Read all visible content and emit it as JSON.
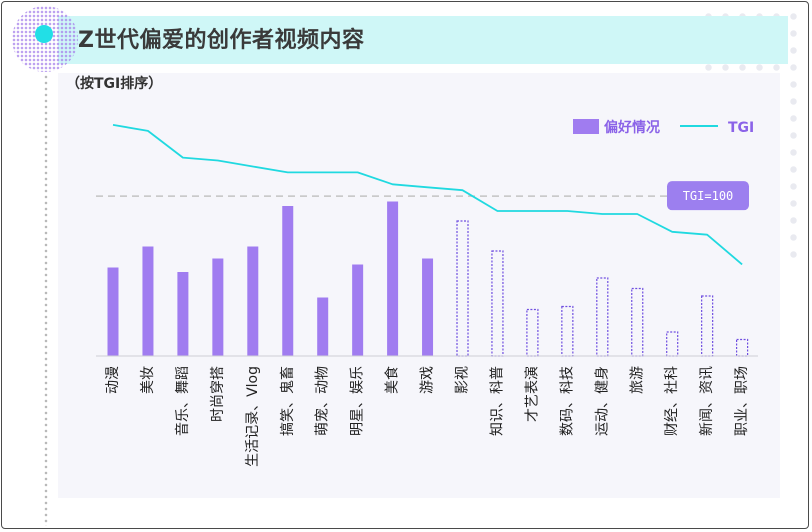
{
  "title": "Z世代偏爱的创作者视频内容",
  "subtitle": "（按TGI排序）",
  "chart_data": {
    "type": "bar",
    "title": "Z世代偏爱的创作者视频内容",
    "subtitle": "（按TGI排序）",
    "categories": [
      "动漫",
      "美妆",
      "音乐、舞蹈",
      "时尚穿搭",
      "生活记录、Vlog",
      "搞笑、鬼畜",
      "萌宠、动物",
      "明星、娱乐",
      "美食",
      "游戏",
      "影视",
      "知识、科普",
      "才艺表演",
      "数码、科技",
      "运动、健身",
      "旅游",
      "财经、社科",
      "新闻、资讯",
      "职业、职场"
    ],
    "series": [
      {
        "name": "偏好情况",
        "type": "bar",
        "values": [
          59,
          73,
          56,
          65,
          73,
          100,
          39,
          61,
          103,
          65,
          90,
          70,
          31,
          33,
          52,
          45,
          16,
          40,
          11
        ],
        "outlined_from_index": 10
      },
      {
        "name": "TGI",
        "type": "line",
        "values": [
          124,
          122,
          113,
          112,
          110,
          108,
          108,
          108,
          104,
          103,
          102,
          95,
          95,
          95,
          94,
          94,
          88,
          87,
          77
        ]
      }
    ],
    "reference_line": {
      "value": 100,
      "label": "TGI=100"
    },
    "legend_position": "top-right",
    "colors": {
      "bar": "#a07cf0",
      "bar_outline": "#6f4ee0",
      "line": "#20d9e0",
      "ref_badge": "#9c7fef",
      "ref_line": "#c4c4c4"
    }
  }
}
